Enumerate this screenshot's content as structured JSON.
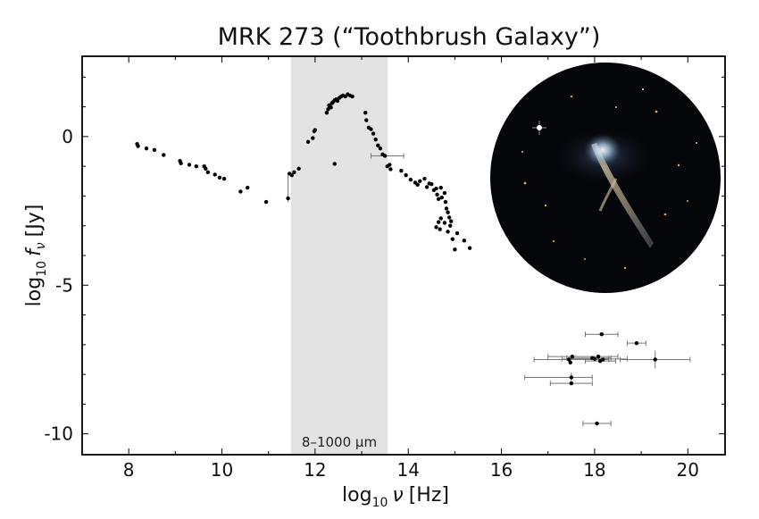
{
  "chart_data": {
    "type": "scatter",
    "title": "MRK 273 (“Toothbrush Galaxy”)",
    "xlabel": {
      "base": "log",
      "sub": "10",
      "var": "ν",
      "unit": "[Hz]"
    },
    "ylabel": {
      "base": "log",
      "sub": "10",
      "var": "f",
      "varsub": "ν",
      "unit": "[Jy]"
    },
    "xlim": [
      7.0,
      20.8
    ],
    "ylim": [
      -10.7,
      2.7
    ],
    "xticks": [
      8,
      10,
      12,
      14,
      16,
      18,
      20
    ],
    "xtick_labels": [
      "8",
      "10",
      "12",
      "14",
      "16",
      "18",
      "20"
    ],
    "yticks": [
      0,
      -5,
      -10
    ],
    "ytick_labels": [
      "0",
      "-5",
      "-10"
    ],
    "grid": false,
    "shaded_band": {
      "x": [
        11.48,
        13.56
      ],
      "color": "#e3e3e3",
      "label": "8–1000 μm"
    },
    "inset": {
      "description": "galaxy image",
      "shape": "circle"
    },
    "points": [
      [
        8.18,
        -0.25
      ],
      [
        8.2,
        -0.32
      ],
      [
        8.38,
        -0.4
      ],
      [
        8.55,
        -0.45
      ],
      [
        8.75,
        -0.62
      ],
      [
        9.1,
        -0.82
      ],
      [
        9.12,
        -0.9
      ],
      [
        9.3,
        -0.95
      ],
      [
        9.45,
        -1.0
      ],
      [
        9.62,
        -1.0
      ],
      [
        9.65,
        -1.08
      ],
      [
        9.7,
        -1.2
      ],
      [
        9.85,
        -1.28
      ],
      [
        9.95,
        -1.38
      ],
      [
        10.05,
        -1.42
      ],
      [
        10.4,
        -1.85
      ],
      [
        10.55,
        -1.72
      ],
      [
        10.95,
        -2.2
      ],
      [
        11.42,
        -2.08
      ],
      [
        11.45,
        -1.25
      ],
      [
        11.5,
        -1.3
      ],
      [
        11.55,
        -1.2
      ],
      [
        11.65,
        -1.08
      ],
      [
        11.85,
        -0.18
      ],
      [
        11.95,
        -0.05
      ],
      [
        11.98,
        0.18
      ],
      [
        12.0,
        0.22
      ],
      [
        12.25,
        0.8
      ],
      [
        12.28,
        0.92
      ],
      [
        12.3,
        1.05
      ],
      [
        12.34,
        0.98
      ],
      [
        12.36,
        1.12
      ],
      [
        12.38,
        1.15
      ],
      [
        12.42,
        1.22
      ],
      [
        12.45,
        1.25
      ],
      [
        12.48,
        1.2
      ],
      [
        12.52,
        1.3
      ],
      [
        12.56,
        1.35
      ],
      [
        12.6,
        1.38
      ],
      [
        12.65,
        1.35
      ],
      [
        12.7,
        1.42
      ],
      [
        12.75,
        1.38
      ],
      [
        12.8,
        1.35
      ],
      [
        12.42,
        -0.92
      ],
      [
        13.08,
        0.8
      ],
      [
        13.1,
        0.55
      ],
      [
        13.15,
        0.3
      ],
      [
        13.2,
        0.25
      ],
      [
        13.25,
        0.1
      ],
      [
        13.3,
        -0.1
      ],
      [
        13.35,
        -0.3
      ],
      [
        13.4,
        -0.4
      ],
      [
        13.45,
        -0.6
      ],
      [
        13.5,
        -0.65
      ],
      [
        13.55,
        -1.0
      ],
      [
        13.6,
        -0.95
      ],
      [
        13.62,
        -1.1
      ],
      [
        13.85,
        -1.15
      ],
      [
        13.95,
        -1.3
      ],
      [
        14.05,
        -1.45
      ],
      [
        14.15,
        -1.55
      ],
      [
        14.2,
        -1.62
      ],
      [
        14.25,
        -1.5
      ],
      [
        14.35,
        -1.42
      ],
      [
        14.4,
        -1.7
      ],
      [
        14.45,
        -1.58
      ],
      [
        14.5,
        -1.6
      ],
      [
        14.55,
        -1.8
      ],
      [
        14.6,
        -1.75
      ],
      [
        14.62,
        -1.95
      ],
      [
        14.65,
        -2.1
      ],
      [
        14.7,
        -1.72
      ],
      [
        14.72,
        -2.05
      ],
      [
        14.78,
        -1.9
      ],
      [
        14.8,
        -2.2
      ],
      [
        14.82,
        -2.42
      ],
      [
        14.85,
        -2.55
      ],
      [
        14.88,
        -2.72
      ],
      [
        14.9,
        -3.0
      ],
      [
        14.92,
        -2.85
      ],
      [
        14.85,
        -3.2
      ],
      [
        14.78,
        -2.9
      ],
      [
        14.7,
        -2.75
      ],
      [
        14.65,
        -2.88
      ],
      [
        14.6,
        -3.05
      ],
      [
        14.68,
        -3.12
      ],
      [
        14.95,
        -3.45
      ],
      [
        15.05,
        -3.25
      ],
      [
        15.0,
        -3.8
      ],
      [
        15.2,
        -3.5
      ],
      [
        15.32,
        -3.75
      ],
      [
        17.45,
        -7.5
      ],
      [
        17.48,
        -7.6
      ],
      [
        17.5,
        -8.1
      ],
      [
        17.5,
        -8.3
      ],
      [
        17.52,
        -7.4
      ],
      [
        17.95,
        -7.45
      ],
      [
        18.0,
        -7.48
      ],
      [
        18.08,
        -7.4
      ],
      [
        18.12,
        -7.55
      ],
      [
        18.15,
        -6.65
      ],
      [
        18.18,
        -7.5
      ],
      [
        18.05,
        -9.65
      ],
      [
        18.9,
        -6.95
      ],
      [
        19.3,
        -7.5
      ]
    ],
    "error_bars_x": [
      [
        17.45,
        -7.5,
        16.7,
        18.3
      ],
      [
        17.5,
        -8.1,
        16.5,
        17.95
      ],
      [
        17.5,
        -8.3,
        17.05,
        17.95
      ],
      [
        17.52,
        -7.4,
        17.0,
        18.5
      ],
      [
        17.95,
        -7.45,
        17.4,
        18.35
      ],
      [
        18.0,
        -7.48,
        17.3,
        18.7
      ],
      [
        18.12,
        -7.55,
        17.8,
        18.45
      ],
      [
        18.15,
        -6.65,
        17.8,
        18.5
      ],
      [
        18.05,
        -9.65,
        17.75,
        18.35
      ],
      [
        18.9,
        -6.95,
        18.7,
        19.1
      ],
      [
        19.3,
        -7.5,
        18.55,
        20.05
      ],
      [
        13.55,
        -0.65,
        13.2,
        13.9
      ]
    ],
    "error_bars_y": [
      [
        11.42,
        -2.08,
        -2.2,
        -1.3
      ],
      [
        19.3,
        -7.5,
        -7.8,
        -7.2
      ],
      [
        17.5,
        -8.1,
        -8.25,
        -7.95
      ]
    ]
  }
}
